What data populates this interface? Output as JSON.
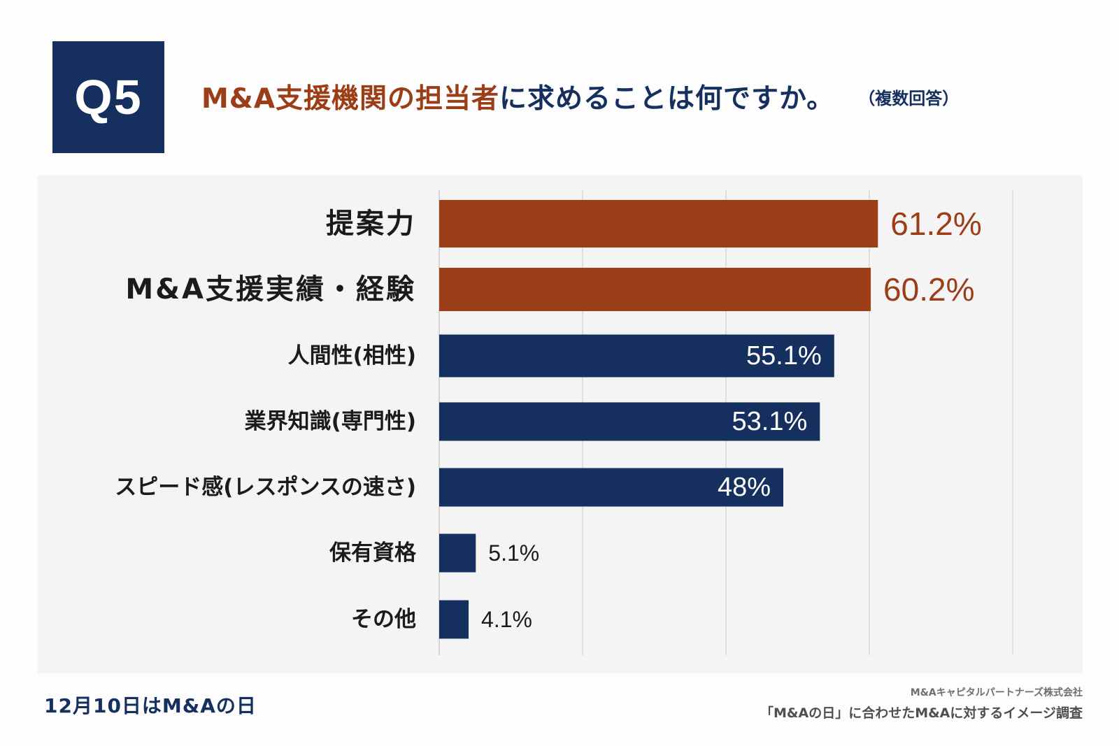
{
  "header": {
    "badge": "Q5",
    "title_highlight": "M&A支援機関の担当者",
    "title_rest": "に求めることは何ですか。",
    "note": "（複数回答）"
  },
  "colors": {
    "highlight": "#9b3d17",
    "navy": "#152f5e",
    "grid": "#c9c9c9"
  },
  "chart_data": {
    "type": "bar",
    "orientation": "horizontal",
    "title": "M&A支援機関の担当者に求めることは何ですか。",
    "xlim": [
      0,
      80
    ],
    "grid": true,
    "categories": [
      "提案力",
      "M&A支援実績・経験",
      "人間性(相性)",
      "業界知識(専門性)",
      "スピード感(レスポンスの速さ)",
      "保有資格",
      "その他"
    ],
    "values": [
      61.2,
      60.2,
      55.1,
      53.1,
      48,
      5.1,
      4.1
    ],
    "value_labels": [
      "61.2%",
      "60.2%",
      "55.1%",
      "53.1%",
      "48%",
      "5.1%",
      "4.1%"
    ],
    "highlighted": [
      true,
      true,
      false,
      false,
      false,
      false,
      false
    ]
  },
  "footer": {
    "campaign": "12月10日はM&Aの日",
    "company": "M&Aキャピタルパートナーズ株式会社",
    "survey": "「M&Aの日」に合わせたM&Aに対するイメージ調査"
  }
}
